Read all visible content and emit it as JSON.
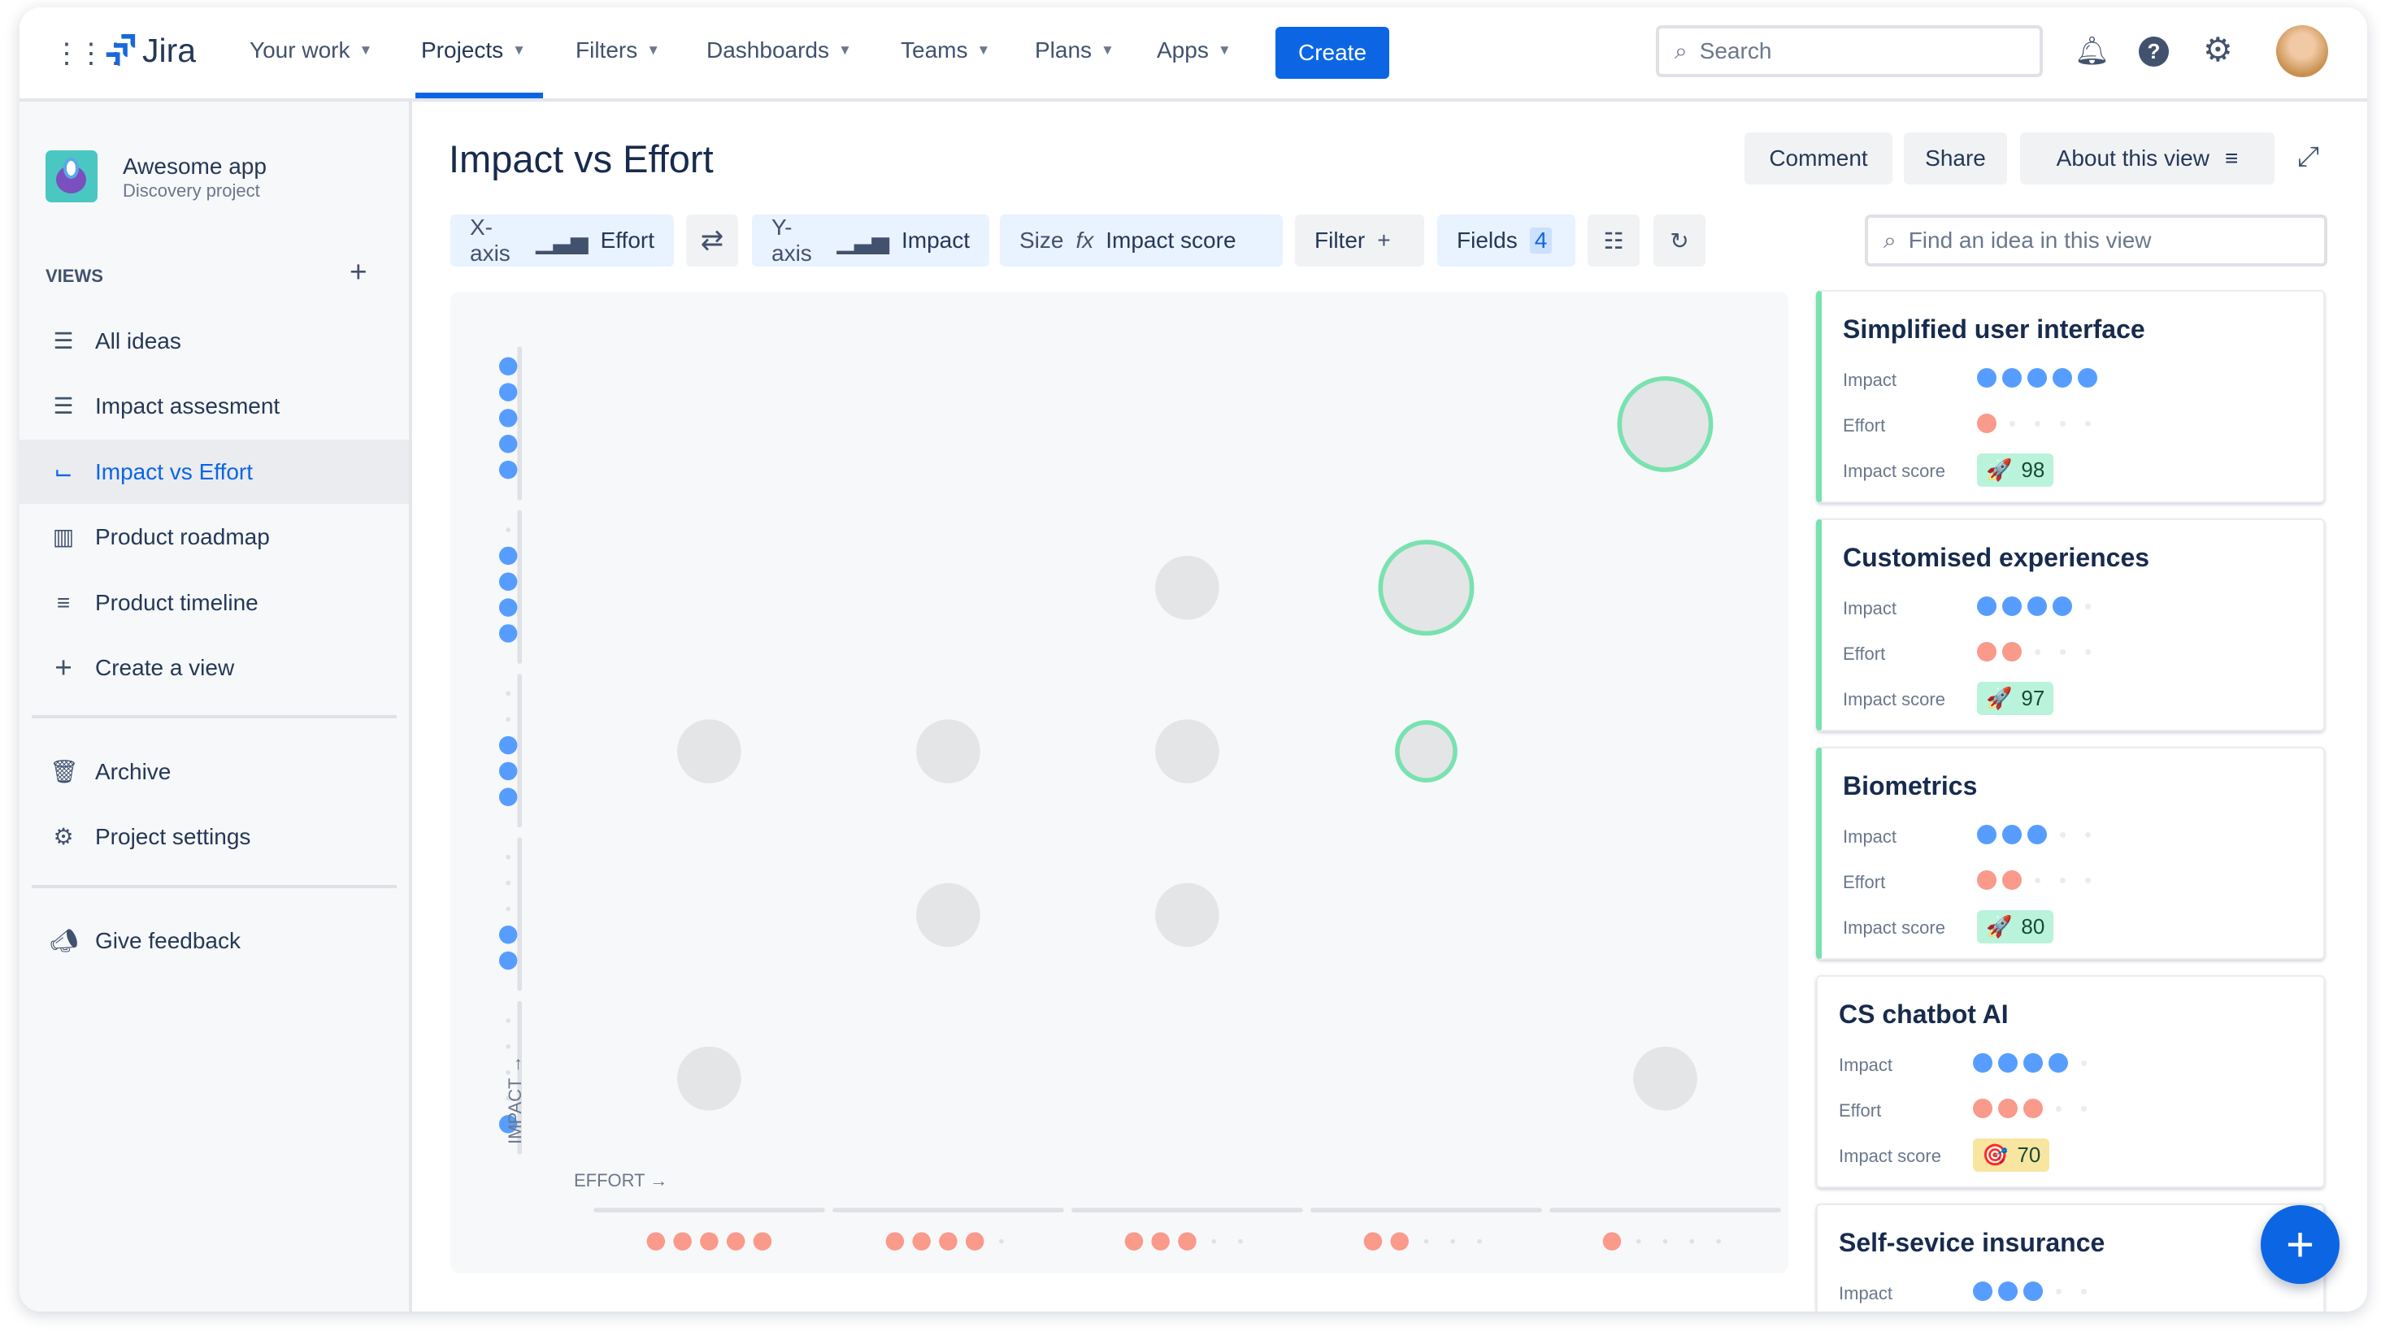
{
  "header": {
    "product": "Jira",
    "nav": [
      "Your work",
      "Projects",
      "Filters",
      "Dashboards",
      "Teams",
      "Plans",
      "Apps"
    ],
    "active_nav": "Projects",
    "create_label": "Create",
    "search_placeholder": "Search",
    "accent": "#0c66e4"
  },
  "sidebar": {
    "project_name": "Awesome app",
    "project_type": "Discovery project",
    "views_heading": "VIEWS",
    "views": [
      {
        "label": "All ideas",
        "icon": "list-icon"
      },
      {
        "label": "Impact assesment",
        "icon": "list-icon"
      },
      {
        "label": "Impact vs Effort",
        "icon": "matrix-icon",
        "active": true
      },
      {
        "label": "Product roadmap",
        "icon": "board-icon"
      },
      {
        "label": "Product timeline",
        "icon": "timeline-icon"
      },
      {
        "label": "Create a view",
        "icon": "plus-icon"
      }
    ],
    "archive": "Archive",
    "settings": "Project settings",
    "feedback": "Give feedback"
  },
  "page": {
    "title": "Impact vs Effort",
    "comment": "Comment",
    "share": "Share",
    "about": "About this view",
    "toolbar": {
      "xaxis_label": "X-axis",
      "xaxis_value": "Effort",
      "yaxis_label": "Y-axis",
      "yaxis_value": "Impact",
      "size_label": "Size",
      "size_fx": "fx",
      "size_value": "Impact score",
      "filter": "Filter",
      "fields": "Fields",
      "fields_count": "4"
    },
    "find_placeholder": "Find an idea in this view"
  },
  "chart_data": {
    "type": "scatter",
    "xlabel": "EFFORT",
    "ylabel": "IMPACT",
    "x_levels": [
      5,
      4,
      3,
      2,
      1
    ],
    "y_levels": [
      5,
      4,
      3,
      2,
      1
    ],
    "scale_max": 5,
    "points": [
      {
        "effort": 1,
        "impact": 5,
        "score": 98,
        "highlighted": true
      },
      {
        "effort": 2,
        "impact": 4,
        "score": 97,
        "highlighted": true
      },
      {
        "effort": 3,
        "impact": 4,
        "highlighted": false
      },
      {
        "effort": 5,
        "impact": 3,
        "highlighted": false
      },
      {
        "effort": 4,
        "impact": 3,
        "highlighted": false
      },
      {
        "effort": 3,
        "impact": 3,
        "highlighted": false
      },
      {
        "effort": 2,
        "impact": 3,
        "score": 80,
        "highlighted": true
      },
      {
        "effort": 4,
        "impact": 2,
        "highlighted": false
      },
      {
        "effort": 3,
        "impact": 2,
        "highlighted": false
      },
      {
        "effort": 5,
        "impact": 1,
        "highlighted": false
      },
      {
        "effort": 1,
        "impact": 1,
        "highlighted": false
      }
    ],
    "colors": {
      "impact": "#579dff",
      "effort": "#f99a8b",
      "bubble": "#e4e5e7",
      "highlight": "#79e2b0"
    }
  },
  "ideas": [
    {
      "title": "Simplified user interface",
      "impact": 5,
      "effort": 1,
      "score": "98",
      "badge": "rocket",
      "badge_color": "#baf3db"
    },
    {
      "title": "Customised experiences",
      "impact": 4,
      "effort": 2,
      "score": "97",
      "badge": "rocket",
      "badge_color": "#baf3db"
    },
    {
      "title": "Biometrics",
      "impact": 3,
      "effort": 2,
      "score": "80",
      "badge": "rocket",
      "badge_color": "#baf3db"
    },
    {
      "title": "CS chatbot AI",
      "impact": 4,
      "effort": 3,
      "score": "70",
      "badge": "target",
      "badge_color": "#f8e6a0"
    },
    {
      "title": "Self-sevice insurance",
      "impact": 3
    }
  ],
  "labels": {
    "impact": "Impact",
    "effort": "Effort",
    "score": "Impact score"
  }
}
